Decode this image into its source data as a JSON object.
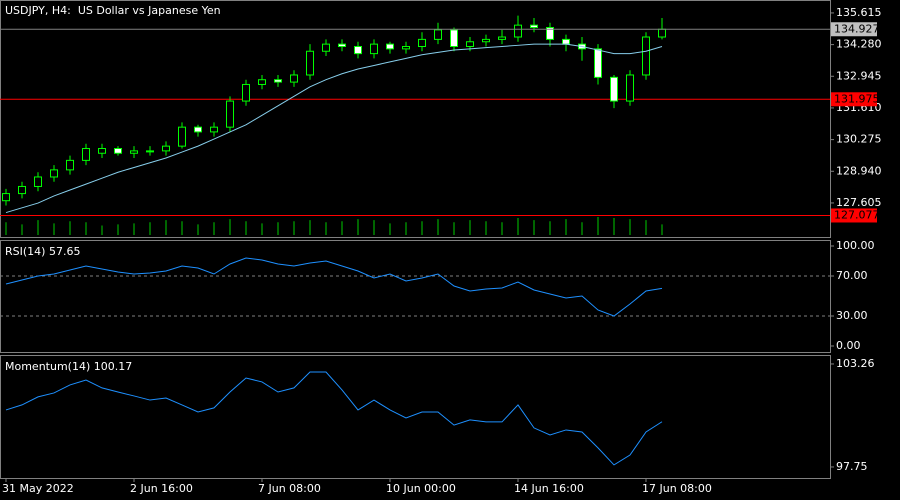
{
  "chart_data": [
    {
      "type": "candlestick",
      "title": "USDJPY, H4:  US Dollar vs Japanese Yen",
      "color": "#00ff00",
      "open": [
        127.7,
        128.0,
        128.3,
        128.7,
        129.0,
        129.4,
        129.7,
        129.9,
        129.7,
        129.8,
        129.8,
        130.0,
        130.8,
        130.6,
        130.8,
        131.9,
        132.6,
        132.8,
        132.7,
        133.0,
        134.0,
        134.3,
        134.2,
        133.9,
        134.3,
        134.1,
        134.2,
        134.5,
        134.9,
        134.2,
        134.4,
        134.5,
        134.6,
        135.1,
        135.0,
        134.5,
        134.3,
        134.1,
        132.9,
        131.9,
        133.0,
        134.6
      ],
      "high": [
        128.2,
        128.5,
        128.9,
        129.2,
        129.6,
        130.1,
        130.1,
        130.0,
        130.0,
        130.0,
        130.2,
        131.0,
        130.9,
        131.0,
        132.1,
        132.8,
        133.0,
        133.0,
        133.2,
        134.3,
        134.5,
        134.5,
        134.4,
        134.5,
        134.4,
        134.4,
        134.8,
        135.2,
        135.0,
        134.6,
        134.7,
        134.9,
        135.5,
        135.4,
        135.2,
        134.7,
        134.6,
        134.3,
        133.0,
        133.2,
        134.8,
        135.4
      ],
      "low": [
        127.5,
        127.8,
        128.1,
        128.5,
        128.8,
        129.2,
        129.5,
        129.6,
        129.5,
        129.6,
        129.6,
        129.9,
        130.4,
        130.4,
        130.6,
        131.7,
        132.4,
        132.5,
        132.5,
        132.8,
        133.8,
        134.0,
        133.7,
        133.7,
        133.9,
        133.9,
        134.0,
        134.3,
        134.0,
        134.0,
        134.2,
        134.3,
        134.4,
        134.8,
        134.2,
        134.0,
        133.6,
        132.6,
        131.6,
        131.7,
        132.8,
        134.5
      ],
      "close": [
        128.0,
        128.3,
        128.7,
        129.0,
        129.4,
        129.9,
        129.9,
        129.7,
        129.8,
        129.8,
        130.0,
        130.8,
        130.6,
        130.8,
        131.9,
        132.6,
        132.8,
        132.7,
        133.0,
        134.0,
        134.3,
        134.2,
        133.9,
        134.3,
        134.1,
        134.2,
        134.5,
        134.9,
        134.2,
        134.4,
        134.5,
        134.6,
        135.1,
        135.0,
        134.5,
        134.3,
        134.1,
        132.9,
        131.9,
        133.0,
        134.6,
        134.927
      ],
      "ma": {
        "color": "#87ceeb",
        "values": [
          127.2,
          127.4,
          127.6,
          127.9,
          128.15,
          128.4,
          128.65,
          128.9,
          129.1,
          129.3,
          129.5,
          129.75,
          130.0,
          130.3,
          130.6,
          130.9,
          131.3,
          131.7,
          132.1,
          132.5,
          132.8,
          133.05,
          133.25,
          133.4,
          133.55,
          133.7,
          133.85,
          133.95,
          134.05,
          134.1,
          134.15,
          134.2,
          134.25,
          134.3,
          134.3,
          134.3,
          134.2,
          134.05,
          133.9,
          133.9,
          134.0,
          134.2
        ]
      },
      "volume": {
        "color": "#00cc00",
        "values": [
          12,
          10,
          14,
          11,
          13,
          12,
          9,
          10,
          11,
          12,
          14,
          13,
          10,
          12,
          15,
          13,
          11,
          12,
          13,
          14,
          12,
          13,
          15,
          14,
          11,
          12,
          13,
          15,
          12,
          14,
          13,
          12,
          16,
          14,
          13,
          15,
          12,
          17,
          16,
          15,
          14,
          10
        ]
      },
      "hlines": [
        131.975,
        127.077
      ],
      "hline_color": "#ff0000",
      "ylim": [
        126.17,
        136.16
      ],
      "yticks": [
        135.615,
        {
          "value": 134.28,
          "label": "134.280"
        },
        132.945,
        {
          "value": 131.61,
          "label": "131.610"
        },
        130.275,
        {
          "value": 128.94,
          "label": "128.940"
        },
        127.605
      ]
    },
    {
      "type": "line",
      "title": "RSI(14)",
      "color": "#1e90ff",
      "values": [
        62,
        66,
        70,
        72,
        76,
        80,
        77,
        74,
        72,
        73,
        75,
        80,
        78,
        72,
        82,
        88,
        86,
        82,
        80,
        83,
        85,
        80,
        75,
        68,
        72,
        65,
        68,
        72,
        60,
        55,
        57,
        58,
        64,
        56,
        52,
        48,
        50,
        36,
        30,
        42,
        55,
        57.65
      ],
      "ylim": [
        -6,
        106
      ],
      "levels": [
        70,
        30
      ],
      "yticks": [
        {
          "value": 100,
          "label": "100.00"
        },
        {
          "value": 70,
          "label": "70.00"
        },
        {
          "value": 30,
          "label": "30.00"
        },
        {
          "value": 0,
          "label": "0.00"
        }
      ]
    },
    {
      "type": "line",
      "title": "Momentum(14)",
      "color": "#1e90ff",
      "values": [
        100.8,
        101.07,
        101.5,
        101.71,
        102.14,
        102.4,
        101.98,
        101.76,
        101.55,
        101.33,
        101.44,
        101.07,
        100.69,
        100.91,
        101.76,
        102.51,
        102.3,
        101.76,
        101.98,
        102.83,
        102.83,
        101.87,
        100.8,
        101.33,
        100.8,
        100.37,
        100.69,
        100.69,
        99.99,
        100.27,
        100.16,
        100.16,
        101.07,
        99.84,
        99.46,
        99.73,
        99.62,
        98.77,
        97.86,
        98.39,
        99.62,
        100.17
      ],
      "ylim": [
        97.16,
        103.74
      ],
      "yticks": [
        103.26,
        97.75
      ],
      "categories": [
        "31 May 2022",
        null,
        null,
        null,
        null,
        null,
        null,
        null,
        "2 Jun 16:00",
        null,
        null,
        null,
        null,
        null,
        null,
        null,
        "7 Jun 08:00",
        null,
        null,
        null,
        null,
        null,
        null,
        null,
        "10 Jun 00:00",
        null,
        null,
        null,
        null,
        null,
        null,
        null,
        "14 Jun 16:00",
        null,
        null,
        null,
        null,
        null,
        null,
        null,
        "17 Jun 08:00",
        null
      ]
    }
  ]
}
